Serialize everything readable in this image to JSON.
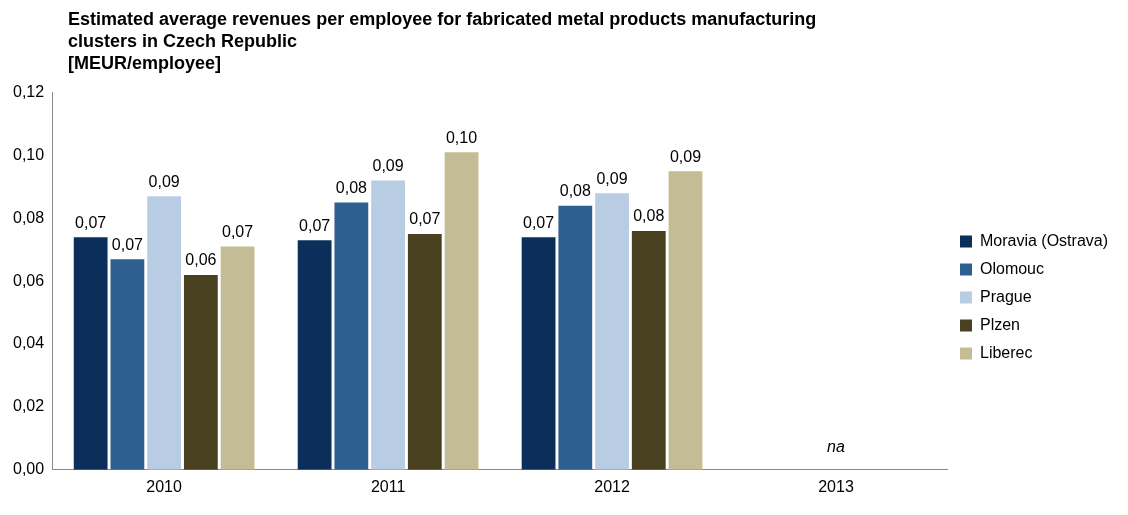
{
  "chart_data": {
    "type": "bar",
    "title": "Estimated average revenues per employee for fabricated metal products manufacturing clusters in Czech Republic",
    "subtitle": "[MEUR/employee]",
    "categories": [
      "2010",
      "2011",
      "2012",
      "2013"
    ],
    "series": [
      {
        "name": "Moravia (Ostrava)",
        "color": "#0b2f5a",
        "values": [
          0.074,
          0.073,
          0.074,
          null
        ],
        "value_labels": [
          "0,07",
          "0,07",
          "0,07",
          null
        ]
      },
      {
        "name": "Olomouc",
        "color": "#2e5f91",
        "values": [
          0.067,
          0.085,
          0.084,
          null
        ],
        "value_labels": [
          "0,07",
          "0,08",
          "0,08",
          null
        ]
      },
      {
        "name": "Prague",
        "color": "#b8cce4",
        "values": [
          0.087,
          0.092,
          0.088,
          null
        ],
        "value_labels": [
          "0,09",
          "0,09",
          "0,09",
          null
        ]
      },
      {
        "name": "Plzen",
        "color": "#48401f",
        "values": [
          0.062,
          0.075,
          0.076,
          null
        ],
        "value_labels": [
          "0,06",
          "0,07",
          "0,08",
          null
        ]
      },
      {
        "name": "Liberec",
        "color": "#c4bc94",
        "values": [
          0.071,
          0.101,
          0.095,
          null
        ],
        "value_labels": [
          "0,07",
          "0,10",
          "0,09",
          null
        ]
      }
    ],
    "ylim": [
      0,
      0.12
    ],
    "yticks": [
      {
        "value": 0,
        "label": "0,00"
      },
      {
        "value": 0.02,
        "label": "0,02"
      },
      {
        "value": 0.04,
        "label": "0,04"
      },
      {
        "value": 0.06,
        "label": "0,06"
      },
      {
        "value": 0.08,
        "label": "0,08"
      },
      {
        "value": 0.1,
        "label": "0,10"
      },
      {
        "value": 0.12,
        "label": "0,12"
      }
    ],
    "annotations": [
      "na"
    ],
    "grid": false,
    "legend": "right"
  }
}
